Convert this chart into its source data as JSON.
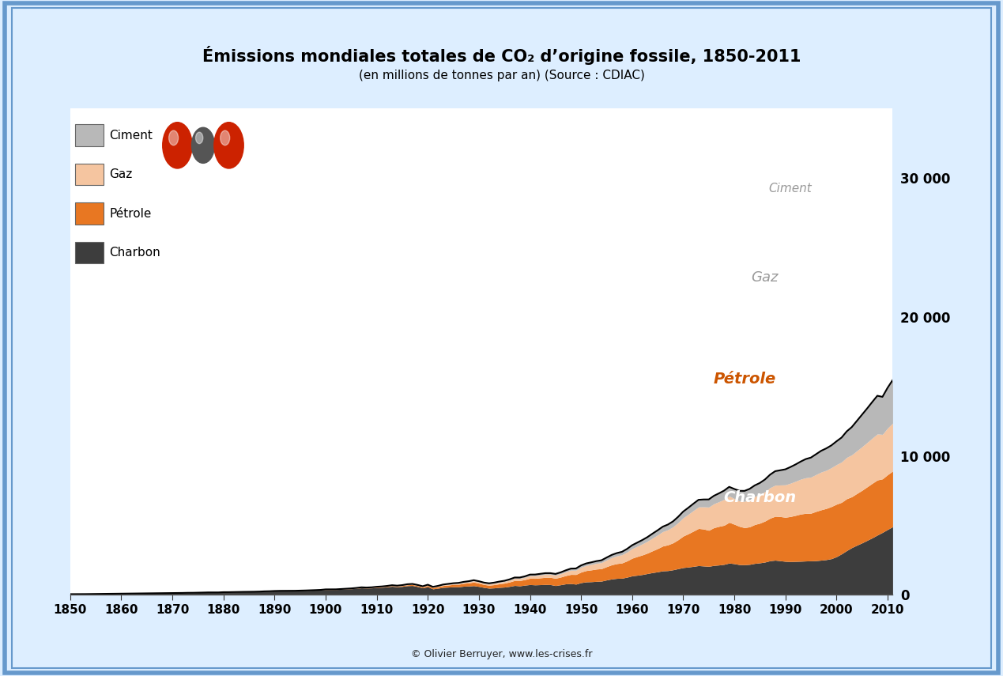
{
  "title_line1": "Émissions mondiales totales de CO₂ d’origine fossile, 1850-2011",
  "title_line2": "(en millions de tonnes par an) (Source : CDIAC)",
  "copyright": "© Olivier Berruyer, www.les-crises.fr",
  "colors": {
    "charbon": "#3d3d3d",
    "petrole": "#e87722",
    "gaz": "#f5c5a0",
    "ciment": "#b8b8b8"
  },
  "border_color": "#6699cc",
  "background_color": "#ffffff",
  "outer_bg": "#ddeeff",
  "ylim": [
    0,
    35000
  ],
  "yticks": [
    0,
    10000,
    20000,
    30000
  ],
  "ytick_labels": [
    "0",
    "10 000",
    "20 000",
    "30 000"
  ],
  "xlim": [
    1850,
    2011
  ],
  "xticks": [
    1850,
    1860,
    1870,
    1880,
    1890,
    1900,
    1910,
    1920,
    1930,
    1940,
    1950,
    1960,
    1970,
    1980,
    1990,
    2000,
    2010
  ]
}
